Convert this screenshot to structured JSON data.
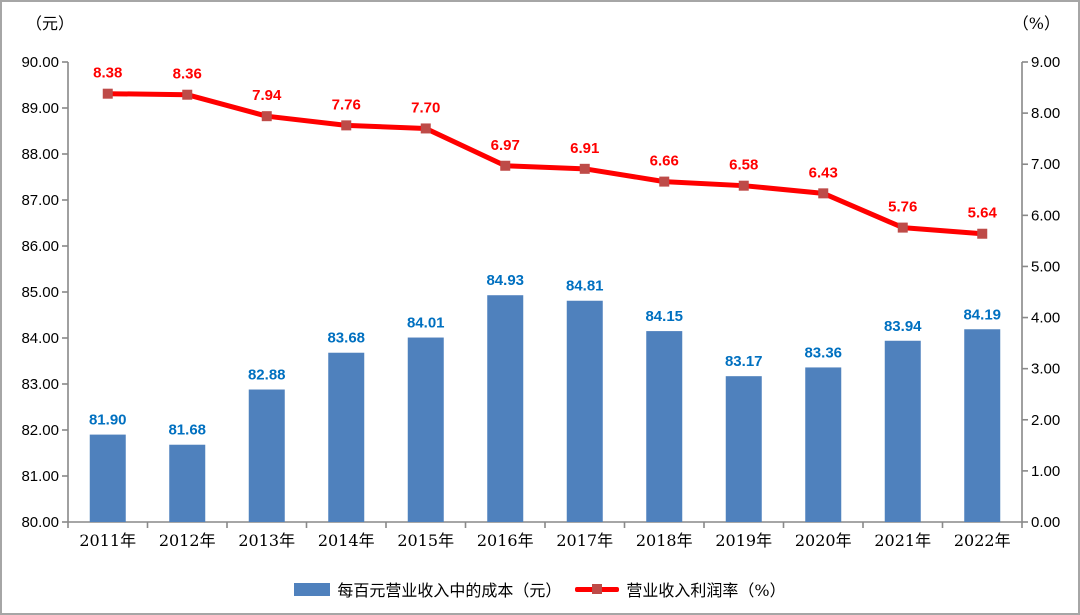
{
  "chart_data": {
    "type": "bar",
    "subtype": "combo-bar-line-dual-axis",
    "categories": [
      "2011年",
      "2012年",
      "2013年",
      "2014年",
      "2015年",
      "2016年",
      "2017年",
      "2018年",
      "2019年",
      "2020年",
      "2021年",
      "2022年"
    ],
    "series": [
      {
        "name": "每百元营业收入中的成本（元）",
        "type": "bar",
        "axis": "left",
        "color": "#4f81bd",
        "label_color": "#0070c0",
        "values": [
          81.9,
          81.68,
          82.88,
          83.68,
          84.01,
          84.93,
          84.81,
          84.15,
          83.17,
          83.36,
          83.94,
          84.19
        ],
        "value_labels": [
          "81.90",
          "81.68",
          "82.88",
          "83.68",
          "84.01",
          "84.93",
          "84.81",
          "84.15",
          "83.17",
          "83.36",
          "83.94",
          "84.19"
        ]
      },
      {
        "name": "营业收入利润率（%）",
        "type": "line",
        "axis": "right",
        "color": "#ff0000",
        "marker_color": "#be4b48",
        "label_color": "#ff0000",
        "values": [
          8.38,
          8.36,
          7.94,
          7.76,
          7.7,
          6.97,
          6.91,
          6.66,
          6.58,
          6.43,
          5.76,
          5.64
        ],
        "value_labels": [
          "8.38",
          "8.36",
          "7.94",
          "7.76",
          "7.70",
          "6.97",
          "6.91",
          "6.66",
          "6.58",
          "6.43",
          "5.76",
          "5.64"
        ]
      }
    ],
    "left_axis": {
      "title": "（元）",
      "min": 80,
      "max": 90,
      "step": 1,
      "tick_labels": [
        "90.00",
        "89.00",
        "88.00",
        "87.00",
        "86.00",
        "85.00",
        "84.00",
        "83.00",
        "82.00",
        "81.00",
        "80.00"
      ]
    },
    "right_axis": {
      "title": "（%）",
      "min": 0,
      "max": 9,
      "step": 1,
      "tick_labels": [
        "9.00",
        "8.00",
        "7.00",
        "6.00",
        "5.00",
        "4.00",
        "3.00",
        "2.00",
        "1.00",
        "0.00"
      ]
    },
    "axis_color": "#898989",
    "tick_text_color": "#000000",
    "grid": false,
    "legend_position": "bottom"
  }
}
